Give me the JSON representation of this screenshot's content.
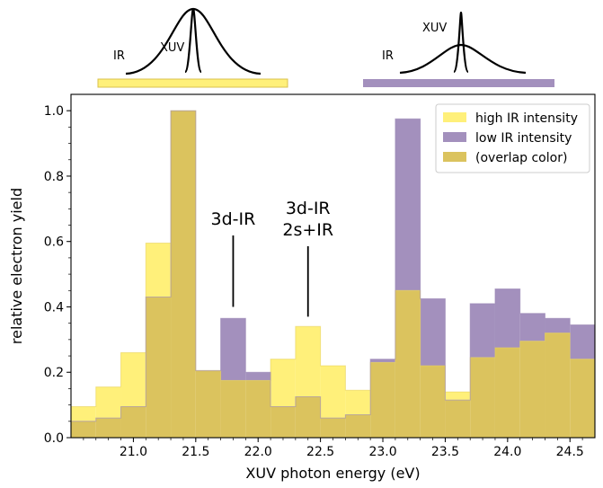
{
  "chart_data": {
    "type": "bar",
    "xlabel": "XUV photon energy (eV)",
    "ylabel": "relative electron yield",
    "xlim": [
      20.5,
      24.7
    ],
    "ylim": [
      0.0,
      1.05
    ],
    "xticks": [
      "21.0",
      "21.5",
      "22.0",
      "22.5",
      "23.0",
      "23.5",
      "24.0",
      "24.5"
    ],
    "yticks": [
      "0.0",
      "0.2",
      "0.4",
      "0.6",
      "0.8",
      "1.0"
    ],
    "bin_edges": [
      20.5,
      20.7,
      20.9,
      21.1,
      21.3,
      21.5,
      21.7,
      21.9,
      22.1,
      22.3,
      22.5,
      22.7,
      22.9,
      23.1,
      23.3,
      23.5,
      23.7,
      23.9,
      24.1,
      24.3,
      24.5,
      24.7
    ],
    "series": [
      {
        "name": "high IR intensity",
        "color": "#fff07a",
        "values": [
          0.095,
          0.155,
          0.26,
          0.595,
          1.0,
          0.205,
          0.175,
          0.175,
          0.24,
          0.34,
          0.22,
          0.145,
          0.23,
          0.45,
          0.22,
          0.14,
          0.245,
          0.275,
          0.295,
          0.32,
          0.24
        ]
      },
      {
        "name": "low IR intensity",
        "color": "#a390bd",
        "values": [
          0.05,
          0.06,
          0.095,
          0.43,
          1.0,
          0.205,
          0.365,
          0.2,
          0.095,
          0.125,
          0.06,
          0.07,
          0.24,
          0.975,
          0.425,
          0.115,
          0.41,
          0.455,
          0.38,
          0.365,
          0.345
        ]
      },
      {
        "name": "(overlap color)",
        "color": "#dbc35e"
      }
    ],
    "annotations": [
      {
        "lines": [
          "3d-IR"
        ],
        "x": 21.8,
        "line_to_y": 0.4
      },
      {
        "lines": [
          "3d-IR",
          "2s+IR"
        ],
        "x": 22.4,
        "line_to_y": 0.37
      }
    ],
    "legend_position": "top-right"
  },
  "pulse_schematic": {
    "left": {
      "ir_label": "IR",
      "xuv_label": "XUV",
      "bar_color": "#fff07a"
    },
    "right": {
      "ir_label": "IR",
      "xuv_label": "XUV",
      "bar_color": "#a390bd"
    }
  }
}
